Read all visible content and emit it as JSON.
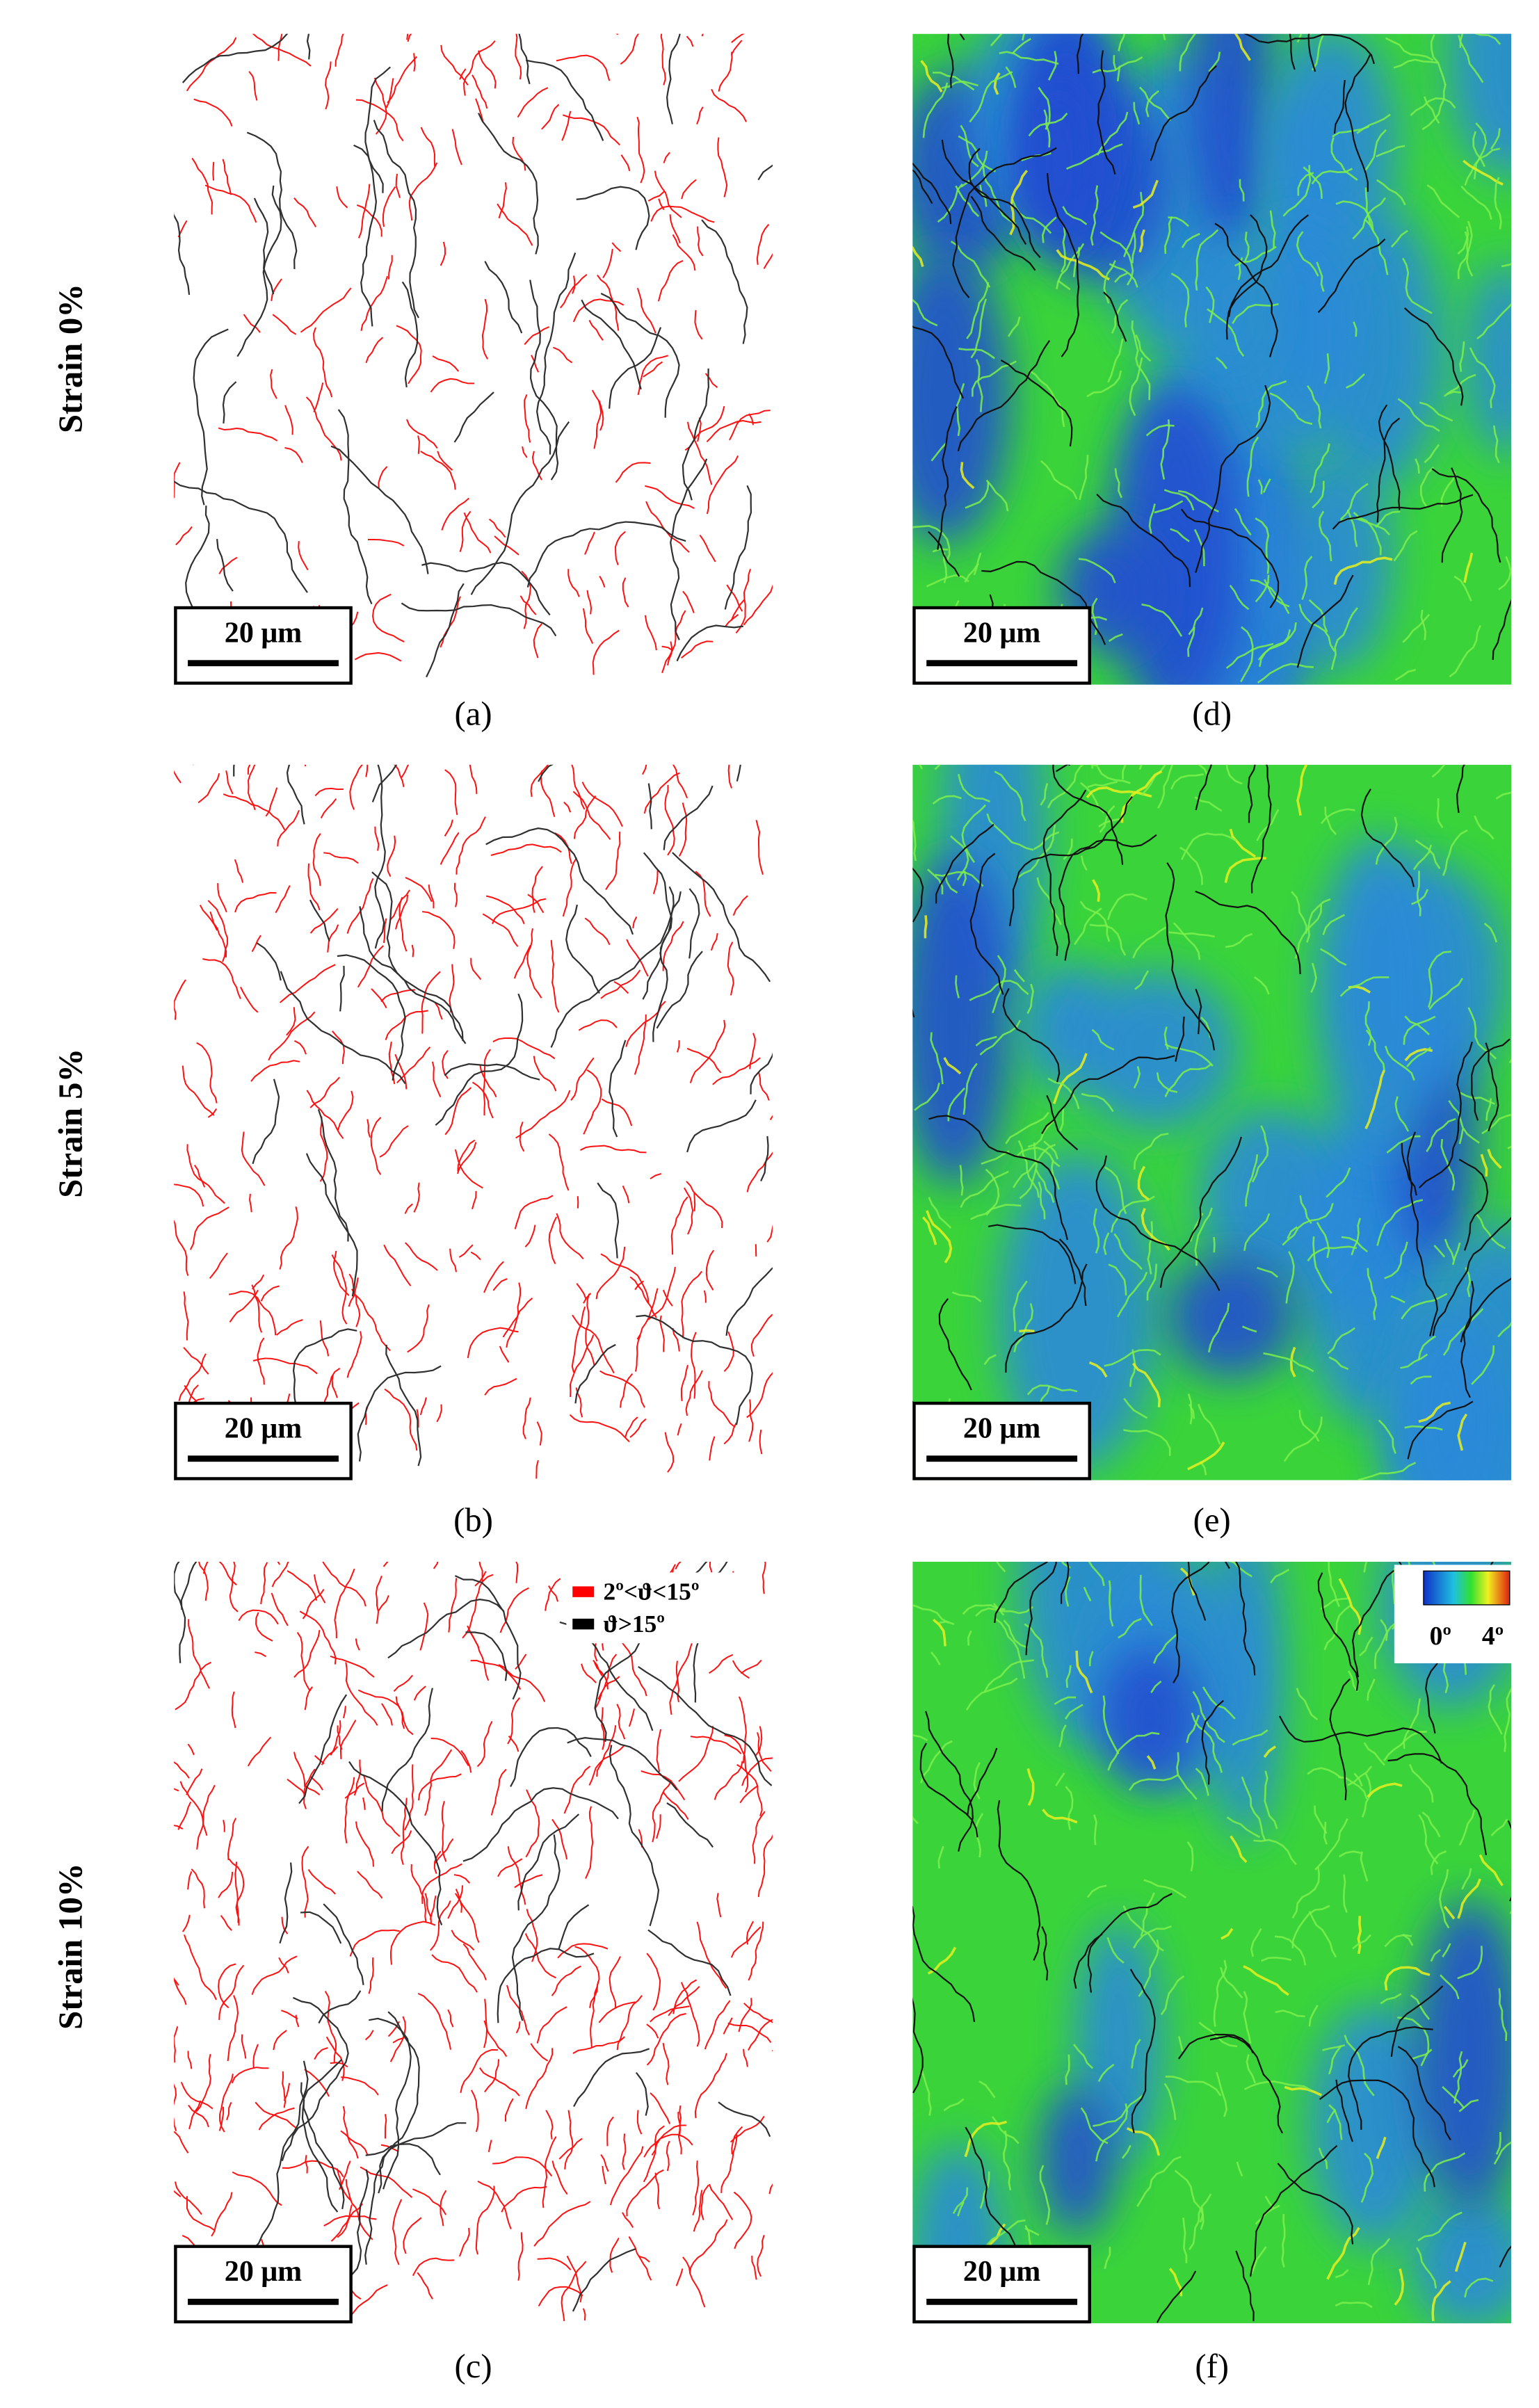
{
  "row_labels": [
    "Strain 0%",
    "Strain 5%",
    "Strain 10%"
  ],
  "panels": [
    {
      "caption": "(a)",
      "scale_bar": "20 μm"
    },
    {
      "caption": "(b)",
      "scale_bar": "20 μm"
    },
    {
      "caption": "(c)",
      "scale_bar": "20 μm"
    },
    {
      "caption": "(d)",
      "scale_bar": "20 μm"
    },
    {
      "caption": "(e)",
      "scale_bar": "20 μm"
    },
    {
      "caption": "(f)",
      "scale_bar": "20 μm"
    }
  ],
  "legend": {
    "items": [
      "2º<ϑ<15º",
      "ϑ>15º"
    ]
  },
  "colorbar": {
    "min_label": "0º",
    "max_label": "4º"
  }
}
